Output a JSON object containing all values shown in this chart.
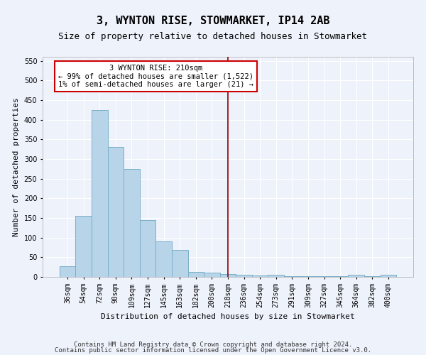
{
  "title": "3, WYNTON RISE, STOWMARKET, IP14 2AB",
  "subtitle": "Size of property relative to detached houses in Stowmarket",
  "xlabel": "Distribution of detached houses by size in Stowmarket",
  "ylabel": "Number of detached properties",
  "categories": [
    "36sqm",
    "54sqm",
    "72sqm",
    "90sqm",
    "109sqm",
    "127sqm",
    "145sqm",
    "163sqm",
    "182sqm",
    "200sqm",
    "218sqm",
    "236sqm",
    "254sqm",
    "273sqm",
    "291sqm",
    "309sqm",
    "327sqm",
    "345sqm",
    "364sqm",
    "382sqm",
    "400sqm"
  ],
  "values": [
    28,
    155,
    425,
    330,
    275,
    145,
    90,
    68,
    13,
    10,
    8,
    5,
    3,
    5,
    2,
    2,
    2,
    2,
    6,
    2,
    5
  ],
  "bar_color": "#b8d4e8",
  "bar_edge_color": "#7aafc8",
  "marker_index": 10,
  "marker_color": "#8b0000",
  "annotation_text": "3 WYNTON RISE: 210sqm\n← 99% of detached houses are smaller (1,522)\n1% of semi-detached houses are larger (21) →",
  "annotation_box_color": "#ffffff",
  "annotation_border_color": "#cc0000",
  "ylim": [
    0,
    560
  ],
  "yticks": [
    0,
    50,
    100,
    150,
    200,
    250,
    300,
    350,
    400,
    450,
    500,
    550
  ],
  "footer_text1": "Contains HM Land Registry data © Crown copyright and database right 2024.",
  "footer_text2": "Contains public sector information licensed under the Open Government Licence v3.0.",
  "bg_color": "#eef2fb",
  "grid_color": "#ffffff",
  "title_fontsize": 11,
  "subtitle_fontsize": 9,
  "axis_label_fontsize": 8,
  "tick_fontsize": 7,
  "footer_fontsize": 6.5,
  "ann_fontsize": 7.5
}
